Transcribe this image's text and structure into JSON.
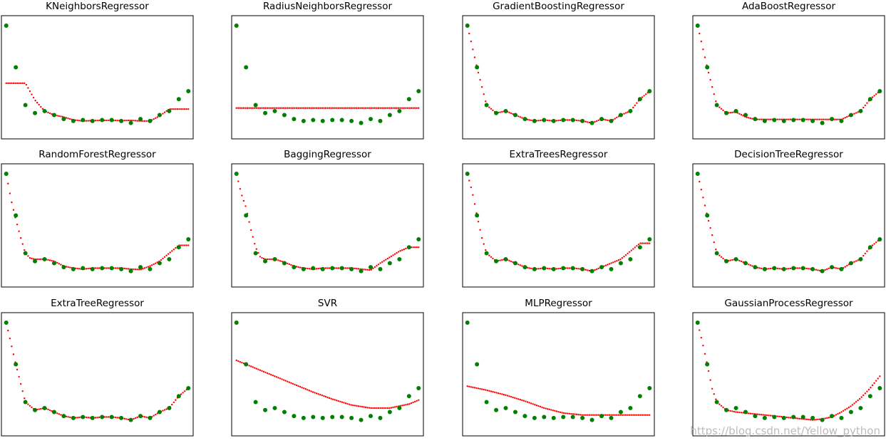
{
  "figure": {
    "watermark": "https://blog.csdn.net/Yellow_python"
  },
  "colors": {
    "points": "#008000",
    "curve": "#ff0000",
    "axes": "#000000"
  },
  "chart_data": [
    {
      "type": "scatter",
      "title": "KNeighborsRegressor",
      "x_range": [
        -0.5,
        19.5
      ],
      "y_range": [
        -0.2,
        6.0
      ],
      "grid": false,
      "points": {
        "x": [
          0,
          1,
          2,
          3,
          4,
          5,
          6,
          7,
          8,
          9,
          10,
          11,
          12,
          13,
          14,
          15,
          16,
          17,
          18,
          19
        ],
        "y": [
          5.5,
          3.4,
          1.5,
          1.1,
          1.2,
          1.0,
          0.8,
          0.7,
          0.75,
          0.7,
          0.75,
          0.75,
          0.7,
          0.6,
          0.8,
          0.7,
          1.0,
          1.2,
          1.8,
          2.2
        ]
      },
      "curve": {
        "x": [
          0,
          1,
          2,
          3,
          4,
          5,
          6,
          7,
          8,
          9,
          10,
          11,
          12,
          13,
          14,
          15,
          16,
          17,
          18,
          19
        ],
        "y": [
          2.6,
          2.6,
          2.6,
          1.75,
          1.2,
          1.0,
          0.9,
          0.75,
          0.7,
          0.72,
          0.73,
          0.73,
          0.72,
          0.73,
          0.7,
          0.7,
          0.95,
          1.3,
          1.3,
          1.3
        ]
      }
    },
    {
      "type": "scatter",
      "title": "RadiusNeighborsRegressor",
      "x_range": [
        -0.5,
        19.5
      ],
      "y_range": [
        -0.2,
        6.0
      ],
      "grid": false,
      "points": {
        "x": [
          0,
          1,
          2,
          3,
          4,
          5,
          6,
          7,
          8,
          9,
          10,
          11,
          12,
          13,
          14,
          15,
          16,
          17,
          18,
          19
        ],
        "y": [
          5.5,
          3.4,
          1.5,
          1.1,
          1.2,
          1.0,
          0.8,
          0.7,
          0.75,
          0.7,
          0.75,
          0.75,
          0.7,
          0.6,
          0.8,
          0.7,
          1.0,
          1.2,
          1.8,
          2.2
        ]
      },
      "curve": {
        "x": [
          0,
          19
        ],
        "y": [
          1.35,
          1.35
        ]
      }
    },
    {
      "type": "scatter",
      "title": "GradientBoostingRegressor",
      "x_range": [
        -0.5,
        19.5
      ],
      "y_range": [
        -0.2,
        6.0
      ],
      "grid": false,
      "points": {
        "x": [
          0,
          1,
          2,
          3,
          4,
          5,
          6,
          7,
          8,
          9,
          10,
          11,
          12,
          13,
          14,
          15,
          16,
          17,
          18,
          19
        ],
        "y": [
          5.5,
          3.4,
          1.5,
          1.1,
          1.2,
          1.0,
          0.8,
          0.7,
          0.75,
          0.7,
          0.75,
          0.75,
          0.7,
          0.6,
          0.8,
          0.7,
          1.0,
          1.2,
          1.8,
          2.2
        ]
      },
      "curve": {
        "x": [
          0,
          1,
          2,
          3,
          4,
          5,
          6,
          7,
          8,
          9,
          10,
          11,
          12,
          13,
          14,
          15,
          16,
          17,
          18,
          19
        ],
        "y": [
          5.5,
          3.4,
          1.5,
          1.1,
          1.2,
          1.0,
          0.8,
          0.7,
          0.75,
          0.7,
          0.75,
          0.75,
          0.7,
          0.6,
          0.8,
          0.7,
          1.0,
          1.2,
          1.8,
          2.2
        ]
      }
    },
    {
      "type": "scatter",
      "title": "AdaBoostRegressor",
      "x_range": [
        -0.5,
        19.5
      ],
      "y_range": [
        -0.2,
        6.0
      ],
      "grid": false,
      "points": {
        "x": [
          0,
          1,
          2,
          3,
          4,
          5,
          6,
          7,
          8,
          9,
          10,
          11,
          12,
          13,
          14,
          15,
          16,
          17,
          18,
          19
        ],
        "y": [
          5.5,
          3.4,
          1.5,
          1.1,
          1.2,
          1.0,
          0.8,
          0.7,
          0.75,
          0.7,
          0.75,
          0.75,
          0.7,
          0.6,
          0.8,
          0.7,
          1.0,
          1.2,
          1.8,
          2.2
        ]
      },
      "curve": {
        "x": [
          0,
          1,
          2,
          3,
          4,
          5,
          6,
          7,
          8,
          9,
          10,
          11,
          12,
          13,
          14,
          15,
          16,
          17,
          18,
          19
        ],
        "y": [
          5.5,
          3.4,
          1.5,
          1.1,
          1.15,
          0.9,
          0.78,
          0.78,
          0.78,
          0.78,
          0.78,
          0.78,
          0.78,
          0.78,
          0.78,
          0.78,
          1.0,
          1.2,
          1.8,
          2.2
        ]
      }
    },
    {
      "type": "scatter",
      "title": "RandomForestRegressor",
      "x_range": [
        -0.5,
        19.5
      ],
      "y_range": [
        -0.2,
        6.0
      ],
      "grid": false,
      "points": {
        "x": [
          0,
          1,
          2,
          3,
          4,
          5,
          6,
          7,
          8,
          9,
          10,
          11,
          12,
          13,
          14,
          15,
          16,
          17,
          18,
          19
        ],
        "y": [
          5.5,
          3.4,
          1.5,
          1.1,
          1.2,
          1.0,
          0.8,
          0.7,
          0.75,
          0.7,
          0.75,
          0.75,
          0.7,
          0.6,
          0.8,
          0.7,
          1.0,
          1.2,
          1.8,
          2.2
        ]
      },
      "curve": {
        "x": [
          0,
          0.5,
          1,
          1.5,
          2,
          2.5,
          3,
          4,
          5,
          6,
          7,
          8,
          9,
          10,
          11,
          12,
          13,
          14,
          15,
          16,
          17,
          18,
          19
        ],
        "y": [
          5.5,
          4.2,
          3.2,
          2.3,
          1.5,
          1.25,
          1.2,
          1.2,
          1.1,
          0.85,
          0.75,
          0.7,
          0.75,
          0.75,
          0.75,
          0.75,
          0.7,
          0.68,
          0.85,
          1.1,
          1.5,
          1.9,
          1.9
        ]
      }
    },
    {
      "type": "scatter",
      "title": "BaggingRegressor",
      "x_range": [
        -0.5,
        19.5
      ],
      "y_range": [
        -0.2,
        6.0
      ],
      "grid": false,
      "points": {
        "x": [
          0,
          1,
          2,
          3,
          4,
          5,
          6,
          7,
          8,
          9,
          10,
          11,
          12,
          13,
          14,
          15,
          16,
          17,
          18,
          19
        ],
        "y": [
          5.5,
          3.4,
          1.5,
          1.1,
          1.2,
          1.0,
          0.8,
          0.7,
          0.75,
          0.7,
          0.75,
          0.75,
          0.7,
          0.6,
          0.8,
          0.7,
          1.0,
          1.2,
          1.8,
          2.2
        ]
      },
      "curve": {
        "x": [
          0,
          0.5,
          1,
          1.5,
          2,
          2.5,
          3,
          4,
          5,
          6,
          7,
          8,
          9,
          10,
          11,
          12,
          13,
          14,
          15,
          16,
          17,
          18,
          19
        ],
        "y": [
          5.5,
          4.5,
          3.8,
          2.7,
          1.8,
          1.3,
          1.2,
          1.2,
          1.05,
          0.85,
          0.75,
          0.7,
          0.75,
          0.75,
          0.75,
          0.75,
          0.7,
          0.65,
          1.0,
          1.3,
          1.6,
          1.8,
          1.8
        ]
      }
    },
    {
      "type": "scatter",
      "title": "ExtraTreesRegressor",
      "x_range": [
        -0.5,
        19.5
      ],
      "y_range": [
        -0.2,
        6.0
      ],
      "grid": false,
      "points": {
        "x": [
          0,
          1,
          2,
          3,
          4,
          5,
          6,
          7,
          8,
          9,
          10,
          11,
          12,
          13,
          14,
          15,
          16,
          17,
          18,
          19
        ],
        "y": [
          5.5,
          3.4,
          1.5,
          1.1,
          1.2,
          1.0,
          0.8,
          0.7,
          0.75,
          0.7,
          0.75,
          0.75,
          0.7,
          0.6,
          0.8,
          0.7,
          1.0,
          1.2,
          1.8,
          2.2
        ]
      },
      "curve": {
        "x": [
          0,
          0.5,
          1,
          1.5,
          2,
          3,
          4,
          5,
          6,
          7,
          8,
          9,
          10,
          11,
          12,
          13,
          14,
          15,
          16,
          17,
          18,
          19
        ],
        "y": [
          5.5,
          4.6,
          3.4,
          2.3,
          1.5,
          1.1,
          1.2,
          1.0,
          0.8,
          0.7,
          0.75,
          0.7,
          0.75,
          0.75,
          0.7,
          0.6,
          0.8,
          1.0,
          1.2,
          1.6,
          2.0,
          2.0
        ]
      }
    },
    {
      "type": "scatter",
      "title": "DecisionTreeRegressor",
      "x_range": [
        -0.5,
        19.5
      ],
      "y_range": [
        -0.2,
        6.0
      ],
      "grid": false,
      "points": {
        "x": [
          0,
          1,
          2,
          3,
          4,
          5,
          6,
          7,
          8,
          9,
          10,
          11,
          12,
          13,
          14,
          15,
          16,
          17,
          18,
          19
        ],
        "y": [
          5.5,
          3.4,
          1.5,
          1.1,
          1.2,
          1.0,
          0.8,
          0.7,
          0.75,
          0.7,
          0.75,
          0.75,
          0.7,
          0.6,
          0.8,
          0.7,
          1.0,
          1.2,
          1.8,
          2.2
        ]
      },
      "curve": {
        "x": [
          0,
          1,
          2,
          3,
          4,
          5,
          6,
          7,
          8,
          9,
          10,
          11,
          12,
          13,
          14,
          15,
          16,
          17,
          18,
          19
        ],
        "y": [
          5.5,
          3.4,
          1.5,
          1.1,
          1.2,
          1.0,
          0.8,
          0.7,
          0.75,
          0.7,
          0.75,
          0.75,
          0.7,
          0.6,
          0.8,
          0.7,
          1.0,
          1.2,
          1.8,
          2.2
        ]
      }
    },
    {
      "type": "scatter",
      "title": "ExtraTreeRegressor",
      "x_range": [
        -0.5,
        19.5
      ],
      "y_range": [
        -0.2,
        6.0
      ],
      "grid": false,
      "points": {
        "x": [
          0,
          1,
          2,
          3,
          4,
          5,
          6,
          7,
          8,
          9,
          10,
          11,
          12,
          13,
          14,
          15,
          16,
          17,
          18,
          19
        ],
        "y": [
          5.5,
          3.4,
          1.5,
          1.1,
          1.2,
          1.0,
          0.8,
          0.7,
          0.75,
          0.7,
          0.75,
          0.75,
          0.7,
          0.6,
          0.8,
          0.7,
          1.0,
          1.2,
          1.8,
          2.2
        ]
      },
      "curve": {
        "x": [
          0,
          1,
          2,
          3,
          4,
          5,
          6,
          7,
          8,
          9,
          10,
          11,
          12,
          13,
          14,
          15,
          16,
          17,
          18,
          19
        ],
        "y": [
          5.5,
          3.4,
          1.5,
          1.1,
          1.2,
          1.0,
          0.8,
          0.7,
          0.75,
          0.7,
          0.75,
          0.75,
          0.7,
          0.6,
          0.8,
          0.7,
          1.0,
          1.2,
          1.8,
          2.2
        ]
      }
    },
    {
      "type": "scatter",
      "title": "SVR",
      "x_range": [
        -0.5,
        19.5
      ],
      "y_range": [
        -0.2,
        6.0
      ],
      "grid": false,
      "points": {
        "x": [
          0,
          1,
          2,
          3,
          4,
          5,
          6,
          7,
          8,
          9,
          10,
          11,
          12,
          13,
          14,
          15,
          16,
          17,
          18,
          19
        ],
        "y": [
          5.5,
          3.4,
          1.5,
          1.1,
          1.2,
          1.0,
          0.8,
          0.7,
          0.75,
          0.7,
          0.75,
          0.75,
          0.7,
          0.6,
          0.8,
          0.7,
          1.0,
          1.2,
          1.8,
          2.2
        ]
      },
      "curve": {
        "x": [
          0,
          2,
          4,
          6,
          8,
          10,
          12,
          14,
          16,
          18,
          19
        ],
        "y": [
          3.6,
          3.2,
          2.8,
          2.4,
          2.0,
          1.65,
          1.35,
          1.2,
          1.2,
          1.4,
          1.6
        ]
      }
    },
    {
      "type": "scatter",
      "title": "MLPRegressor",
      "x_range": [
        -0.5,
        19.5
      ],
      "y_range": [
        -0.2,
        6.0
      ],
      "grid": false,
      "points": {
        "x": [
          0,
          1,
          2,
          3,
          4,
          5,
          6,
          7,
          8,
          9,
          10,
          11,
          12,
          13,
          14,
          15,
          16,
          17,
          18,
          19
        ],
        "y": [
          5.5,
          3.4,
          1.5,
          1.1,
          1.2,
          1.0,
          0.8,
          0.7,
          0.75,
          0.7,
          0.75,
          0.75,
          0.7,
          0.6,
          0.8,
          0.7,
          1.0,
          1.2,
          1.8,
          2.2
        ]
      },
      "curve": {
        "x": [
          0,
          2,
          4,
          6,
          8,
          10,
          12,
          14,
          16,
          19
        ],
        "y": [
          2.3,
          2.1,
          1.85,
          1.55,
          1.2,
          0.95,
          0.85,
          0.85,
          0.85,
          0.85
        ]
      }
    },
    {
      "type": "scatter",
      "title": "GaussianProcessRegressor",
      "x_range": [
        -0.5,
        19.5
      ],
      "y_range": [
        -0.2,
        6.0
      ],
      "grid": false,
      "points": {
        "x": [
          0,
          1,
          2,
          3,
          4,
          5,
          6,
          7,
          8,
          9,
          10,
          11,
          12,
          13,
          14,
          15,
          16,
          17,
          18,
          19
        ],
        "y": [
          5.5,
          3.4,
          1.5,
          1.1,
          1.2,
          1.0,
          0.8,
          0.7,
          0.75,
          0.7,
          0.75,
          0.75,
          0.7,
          0.6,
          0.8,
          0.7,
          1.0,
          1.2,
          1.8,
          2.2
        ]
      },
      "curve": {
        "x": [
          0,
          0.5,
          1,
          1.5,
          2,
          3,
          4,
          5,
          6,
          7,
          8,
          9,
          10,
          11,
          12,
          13,
          14,
          15,
          16,
          17,
          18,
          19
        ],
        "y": [
          5.5,
          4.5,
          3.4,
          2.2,
          1.5,
          1.1,
          1.0,
          0.95,
          0.9,
          0.85,
          0.8,
          0.75,
          0.7,
          0.65,
          0.6,
          0.65,
          0.75,
          1.0,
          1.3,
          1.7,
          2.2,
          2.8
        ]
      }
    }
  ]
}
